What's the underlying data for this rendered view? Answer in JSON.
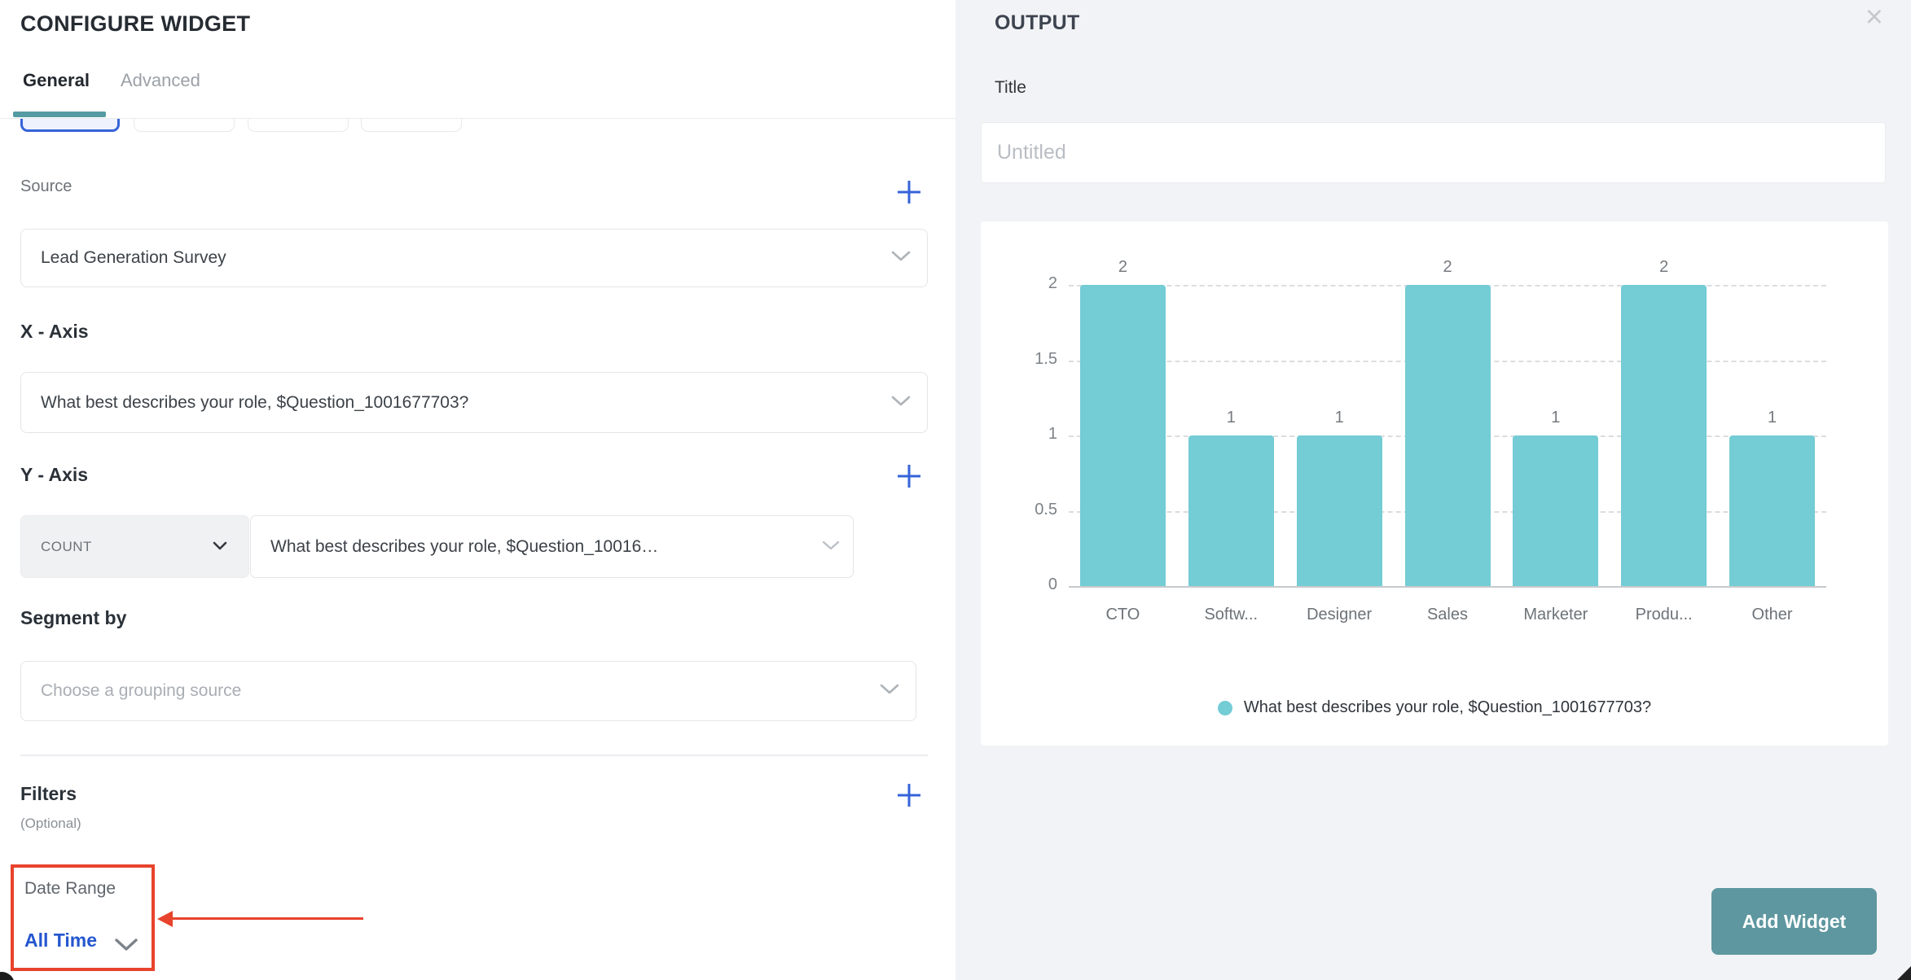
{
  "configure_panel": {
    "title": "CONFIGURE WIDGET",
    "tabs": [
      {
        "label": "General",
        "active": true
      },
      {
        "label": "Advanced",
        "active": false
      }
    ],
    "source_label": "Source",
    "source_value": "Lead Generation Survey",
    "x_axis_label": "X - Axis",
    "x_axis_value": "What best describes your role, $Question_1001677703?",
    "y_axis_label": "Y - Axis",
    "y_axis_aggregation": "COUNT",
    "y_axis_value": "What best describes your role, $Question_10016…",
    "segment_label": "Segment by",
    "segment_placeholder": "Choose a grouping source",
    "filters_label": "Filters",
    "filters_optional": "(Optional)",
    "date_range_label": "Date Range",
    "date_range_value": "All Time"
  },
  "annotation": {
    "type": "highlight-box-with-arrow",
    "target": "date-range-filter",
    "color": "#e8432c"
  },
  "output_panel": {
    "title": "OUTPUT",
    "close_glyph": "×",
    "title_label": "Title",
    "title_placeholder": "Untitled",
    "add_widget_label": "Add Widget"
  },
  "chart_data": {
    "type": "bar",
    "categories": [
      "CTO",
      "Softw...",
      "Designer",
      "Sales",
      "Marketer",
      "Produ...",
      "Other"
    ],
    "values": [
      2,
      1,
      1,
      2,
      1,
      2,
      1
    ],
    "y_ticks": [
      0,
      0.5,
      1,
      1.5,
      2
    ],
    "ylim": [
      0,
      2
    ],
    "grid": "horizontal-dashed",
    "bar_color": "#74ccd5",
    "legend": {
      "position": "bottom-center",
      "label": "What best describes your role, $Question_1001677703?",
      "color": "#74ccd5"
    }
  },
  "colors": {
    "accent_blue": "#3563d8",
    "tab_indicator_teal": "#549ba3",
    "bar_teal": "#74ccd5",
    "button_teal": "#5e97a0",
    "annotation_red": "#e8432c",
    "panel_bg": "#f2f3f6"
  }
}
